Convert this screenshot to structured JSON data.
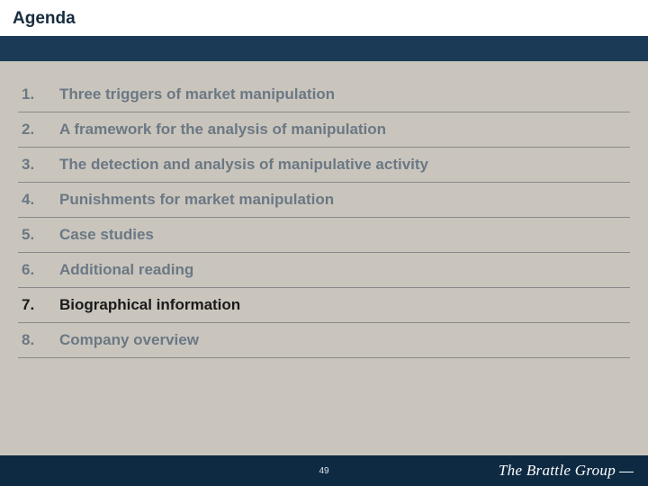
{
  "title": "Agenda",
  "items": [
    {
      "num": "1.",
      "label": "Three triggers of market manipulation",
      "active": false
    },
    {
      "num": "2.",
      "label": "A framework for the analysis of manipulation",
      "active": false
    },
    {
      "num": "3.",
      "label": "The detection and analysis of manipulative activity",
      "active": false
    },
    {
      "num": "4.",
      "label": "Punishments for market manipulation",
      "active": false
    },
    {
      "num": "5.",
      "label": "Case studies",
      "active": false
    },
    {
      "num": "6.",
      "label": "Additional reading",
      "active": false
    },
    {
      "num": "7.",
      "label": "Biographical information",
      "active": true
    },
    {
      "num": "8.",
      "label": "Company overview",
      "active": false
    }
  ],
  "page_number": "49",
  "brand": "The Brattle Group",
  "colors": {
    "background": "#c9c5bd",
    "title_band": "#1b3a56",
    "footer": "#0e2a43",
    "text_active": "#1a1a1a",
    "text_muted": "#6b7884",
    "divider": "#888888"
  },
  "typography": {
    "title_fontsize": 19,
    "item_fontsize": 17,
    "brand_fontsize": 17,
    "pagenum_fontsize": 10
  }
}
